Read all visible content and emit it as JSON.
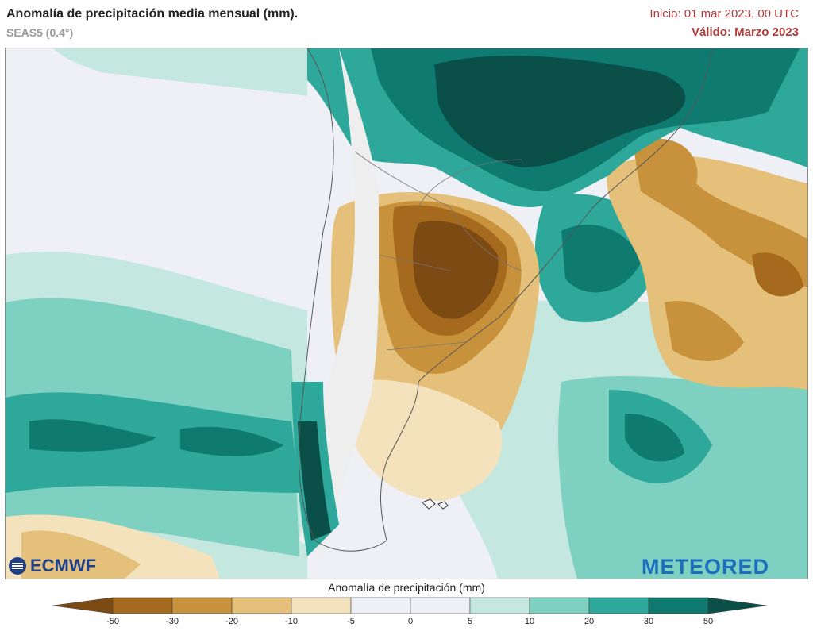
{
  "header": {
    "title": "Anomalía de precipitación media mensual (mm).",
    "subtitle": "SEAS5 (0.4°)",
    "init": "Inicio: 01 mar 2023, 00 UTC",
    "valid": "Válido: Marzo 2023"
  },
  "logos": {
    "left": "ECMWF",
    "right": "METEORED"
  },
  "colorbar": {
    "title": "Anomalía de precipitación (mm)",
    "ticks": [
      "-50",
      "-30",
      "-20",
      "-10",
      "-5",
      "0",
      "5",
      "10",
      "20",
      "30",
      "50"
    ],
    "colors": [
      "#7c4a12",
      "#a56a1e",
      "#c8923c",
      "#e4c07a",
      "#f4e2bc",
      "#eef0f6",
      "#eef0f6",
      "#c4e8e0",
      "#7ed0c0",
      "#2ea89a",
      "#0e7a70",
      "#0a4f48"
    ],
    "colors_note": "first and last colors are the extend arrows"
  },
  "map": {
    "region": "South America - Southern Cone",
    "palette": {
      "ocean_neutral": "#eef0f6",
      "land_dry_base": "#eeeeee",
      "brown_strong": "#7c4a12",
      "brown_mid": "#a56a1e",
      "tan": "#c8923c",
      "tan_light": "#e4c07a",
      "beige": "#f4e2bc",
      "teal_light": "#c4e8e0",
      "teal_mid": "#7ed0c0",
      "teal": "#2ea89a",
      "teal_dark": "#0e7a70",
      "teal_darkest": "#0a4f48"
    }
  }
}
